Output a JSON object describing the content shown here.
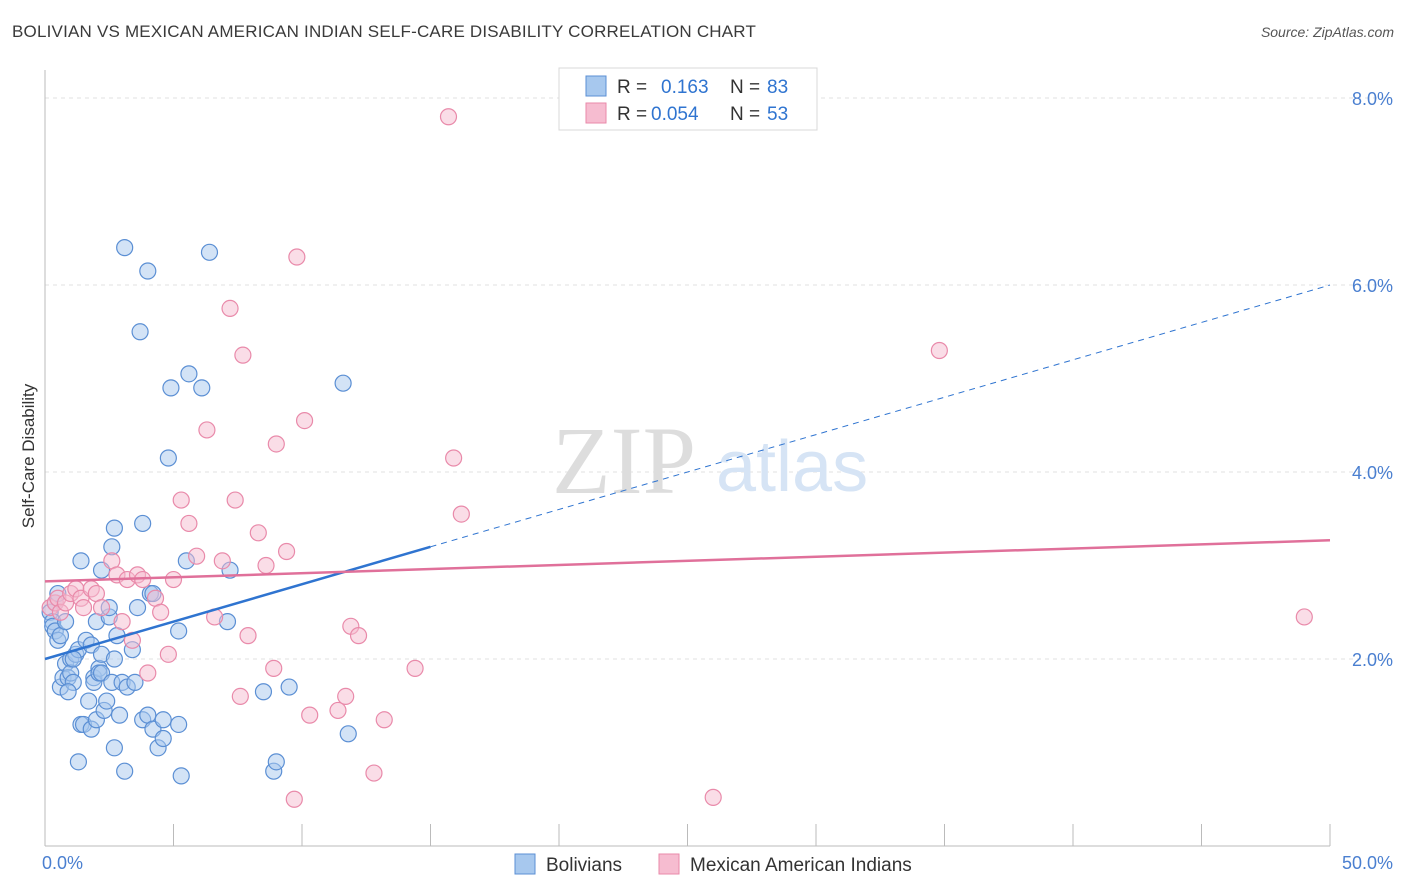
{
  "title": "BOLIVIAN VS MEXICAN AMERICAN INDIAN SELF-CARE DISABILITY CORRELATION CHART",
  "source": "Source: ZipAtlas.com",
  "watermark": {
    "zip": "ZIP",
    "atlas": "atlas"
  },
  "colors": {
    "blue_fill": "#a7c8ee",
    "blue_stroke": "#5b8fd4",
    "blue_line": "#2f74d0",
    "pink_fill": "#f6bcd0",
    "pink_stroke": "#e98aaa",
    "pink_line": "#e0709a",
    "tick_blue": "#4a7fd0",
    "grid": "#e2e2e2"
  },
  "stats_legend": [
    {
      "r_label": "R =",
      "r_value": "0.163",
      "n_label": "N =",
      "n_value": "83"
    },
    {
      "r_label": "R =",
      "r_value": "0.054",
      "n_label": "N =",
      "n_value": "53"
    }
  ],
  "chart_data": {
    "type": "scatter",
    "title": "BOLIVIAN VS MEXICAN AMERICAN INDIAN SELF-CARE DISABILITY CORRELATION CHART",
    "xlabel": "",
    "ylabel": "Self-Care Disability",
    "xlim": [
      0,
      50
    ],
    "ylim": [
      0,
      8.3
    ],
    "x_tick_labels": [
      "0.0%",
      "50.0%"
    ],
    "y_ticks": [
      2.0,
      4.0,
      6.0,
      8.0
    ],
    "y_tick_labels": [
      "2.0%",
      "4.0%",
      "6.0%",
      "8.0%"
    ],
    "grid": true,
    "legend_position": "bottom",
    "series": [
      {
        "name": "Bolivians",
        "color": "#a7c8ee",
        "trend": {
          "x": [
            0,
            15
          ],
          "y": [
            2.0,
            3.2
          ],
          "extended_to": [
            50,
            6.0
          ]
        },
        "points": [
          [
            0.2,
            2.5
          ],
          [
            0.3,
            2.4
          ],
          [
            0.3,
            2.35
          ],
          [
            0.4,
            2.3
          ],
          [
            0.4,
            2.6
          ],
          [
            0.5,
            2.2
          ],
          [
            0.5,
            2.7
          ],
          [
            0.6,
            2.25
          ],
          [
            0.6,
            1.7
          ],
          [
            0.7,
            1.8
          ],
          [
            0.8,
            1.95
          ],
          [
            0.8,
            2.4
          ],
          [
            0.9,
            1.8
          ],
          [
            1.0,
            2.0
          ],
          [
            1.0,
            1.85
          ],
          [
            1.1,
            1.75
          ],
          [
            1.2,
            2.05
          ],
          [
            1.3,
            2.1
          ],
          [
            1.3,
            0.9
          ],
          [
            1.4,
            1.3
          ],
          [
            1.4,
            3.05
          ],
          [
            1.5,
            1.3
          ],
          [
            1.6,
            2.2
          ],
          [
            1.7,
            1.55
          ],
          [
            1.8,
            1.25
          ],
          [
            1.8,
            2.15
          ],
          [
            1.9,
            1.8
          ],
          [
            1.9,
            1.75
          ],
          [
            2.0,
            1.35
          ],
          [
            2.0,
            2.4
          ],
          [
            2.1,
            1.9
          ],
          [
            2.1,
            1.85
          ],
          [
            2.2,
            1.85
          ],
          [
            2.2,
            2.05
          ],
          [
            2.3,
            1.45
          ],
          [
            2.4,
            1.55
          ],
          [
            2.5,
            2.45
          ],
          [
            2.5,
            2.55
          ],
          [
            2.6,
            1.75
          ],
          [
            2.6,
            3.2
          ],
          [
            2.7,
            2.0
          ],
          [
            2.7,
            3.4
          ],
          [
            2.7,
            1.05
          ],
          [
            2.8,
            2.25
          ],
          [
            2.9,
            1.4
          ],
          [
            3.0,
            1.75
          ],
          [
            3.1,
            6.4
          ],
          [
            3.1,
            0.8
          ],
          [
            3.2,
            1.7
          ],
          [
            3.4,
            2.1
          ],
          [
            3.5,
            1.75
          ],
          [
            3.7,
            5.5
          ],
          [
            3.8,
            3.45
          ],
          [
            3.8,
            1.35
          ],
          [
            4.0,
            6.15
          ],
          [
            4.0,
            1.4
          ],
          [
            4.1,
            2.7
          ],
          [
            4.2,
            1.25
          ],
          [
            4.2,
            2.7
          ],
          [
            4.4,
            1.05
          ],
          [
            4.6,
            1.35
          ],
          [
            4.6,
            1.15
          ],
          [
            4.8,
            4.15
          ],
          [
            4.9,
            4.9
          ],
          [
            5.2,
            2.3
          ],
          [
            5.2,
            1.3
          ],
          [
            5.3,
            0.75
          ],
          [
            5.5,
            3.05
          ],
          [
            5.6,
            5.05
          ],
          [
            6.1,
            4.9
          ],
          [
            6.4,
            6.35
          ],
          [
            7.1,
            2.4
          ],
          [
            7.2,
            2.95
          ],
          [
            8.5,
            1.65
          ],
          [
            8.9,
            0.8
          ],
          [
            9.0,
            0.9
          ],
          [
            9.5,
            1.7
          ],
          [
            11.6,
            4.95
          ],
          [
            11.8,
            1.2
          ],
          [
            1.1,
            2.0
          ],
          [
            0.9,
            1.65
          ],
          [
            2.2,
            2.95
          ],
          [
            3.6,
            2.55
          ]
        ]
      },
      {
        "name": "Mexican American Indians",
        "color": "#f6bcd0",
        "trend": {
          "x": [
            0,
            50
          ],
          "y": [
            2.83,
            3.27
          ]
        },
        "points": [
          [
            0.2,
            2.55
          ],
          [
            0.4,
            2.6
          ],
          [
            0.5,
            2.65
          ],
          [
            0.6,
            2.5
          ],
          [
            0.8,
            2.6
          ],
          [
            1.0,
            2.7
          ],
          [
            1.2,
            2.75
          ],
          [
            1.4,
            2.65
          ],
          [
            1.5,
            2.55
          ],
          [
            1.8,
            2.75
          ],
          [
            2.0,
            2.7
          ],
          [
            2.2,
            2.55
          ],
          [
            2.6,
            3.05
          ],
          [
            2.8,
            2.9
          ],
          [
            3.0,
            2.4
          ],
          [
            3.2,
            2.85
          ],
          [
            3.4,
            2.2
          ],
          [
            3.6,
            2.9
          ],
          [
            3.8,
            2.85
          ],
          [
            4.0,
            1.85
          ],
          [
            4.3,
            2.65
          ],
          [
            4.5,
            2.5
          ],
          [
            4.8,
            2.05
          ],
          [
            5.0,
            2.85
          ],
          [
            5.3,
            3.7
          ],
          [
            5.6,
            3.45
          ],
          [
            5.9,
            3.1
          ],
          [
            6.3,
            4.45
          ],
          [
            6.6,
            2.45
          ],
          [
            6.9,
            3.05
          ],
          [
            7.2,
            5.75
          ],
          [
            7.4,
            3.7
          ],
          [
            7.6,
            1.6
          ],
          [
            7.7,
            5.25
          ],
          [
            7.9,
            2.25
          ],
          [
            8.3,
            3.35
          ],
          [
            8.6,
            3.0
          ],
          [
            8.9,
            1.9
          ],
          [
            9.0,
            4.3
          ],
          [
            9.4,
            3.15
          ],
          [
            9.7,
            0.5
          ],
          [
            9.8,
            6.3
          ],
          [
            10.1,
            4.55
          ],
          [
            10.3,
            1.4
          ],
          [
            11.4,
            1.45
          ],
          [
            11.7,
            1.6
          ],
          [
            11.9,
            2.35
          ],
          [
            12.2,
            2.25
          ],
          [
            12.8,
            0.78
          ],
          [
            13.2,
            1.35
          ],
          [
            14.4,
            1.9
          ],
          [
            15.7,
            7.8
          ],
          [
            15.9,
            4.15
          ]
        ]
      }
    ],
    "extra_points_series2": [
      [
        16.2,
        3.55
      ],
      [
        26.0,
        0.52
      ],
      [
        34.8,
        5.3
      ],
      [
        49.0,
        2.45
      ]
    ]
  }
}
